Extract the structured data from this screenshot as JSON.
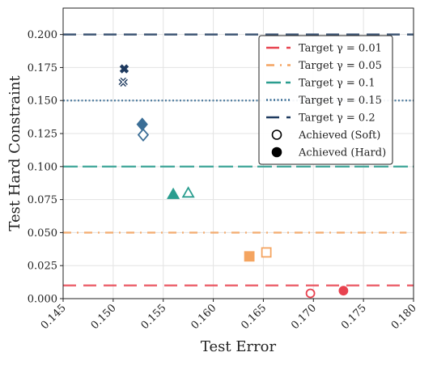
{
  "chart_data": {
    "type": "scatter",
    "title": "",
    "xlabel": "Test Error",
    "ylabel": "Test Hard Constraint",
    "xlim": [
      0.145,
      0.18
    ],
    "ylim": [
      0.0,
      0.22
    ],
    "xticks": [
      "0.145",
      "0.150",
      "0.155",
      "0.160",
      "0.165",
      "0.170",
      "0.175",
      "0.180"
    ],
    "yticks": [
      "0.000",
      "0.025",
      "0.050",
      "0.075",
      "0.100",
      "0.125",
      "0.150",
      "0.175",
      "0.200"
    ],
    "grid": true,
    "legend_position": "upper-right",
    "series": [
      {
        "name": "Target γ = 0.01",
        "target": 0.01,
        "color": "#e8424f",
        "line_style": "dashed",
        "marker": "circle",
        "soft": {
          "x": 0.1697,
          "y": 0.004
        },
        "hard": {
          "x": 0.173,
          "y": 0.006
        }
      },
      {
        "name": "Target γ = 0.05",
        "target": 0.05,
        "color": "#f4a460",
        "line_style": "dash-dot",
        "marker": "square",
        "soft": {
          "x": 0.1653,
          "y": 0.035
        },
        "hard": {
          "x": 0.1636,
          "y": 0.032
        }
      },
      {
        "name": "Target γ = 0.1",
        "target": 0.1,
        "color": "#2a9d8f",
        "line_style": "long-dashed",
        "marker": "triangle",
        "soft": {
          "x": 0.1575,
          "y": 0.08
        },
        "hard": {
          "x": 0.156,
          "y": 0.079
        }
      },
      {
        "name": "Target γ = 0.15",
        "target": 0.15,
        "color": "#3b6e96",
        "line_style": "dotted",
        "marker": "diamond",
        "soft": {
          "x": 0.153,
          "y": 0.124
        },
        "hard": {
          "x": 0.1529,
          "y": 0.132
        }
      },
      {
        "name": "Target γ = 0.2",
        "target": 0.2,
        "color": "#1e3a5f",
        "line_style": "dashed",
        "marker": "x",
        "soft": {
          "x": 0.151,
          "y": 0.164
        },
        "hard": {
          "x": 0.1511,
          "y": 0.174
        }
      }
    ],
    "legend_extra": [
      {
        "label": "Achieved (Soft)",
        "marker": "open-circle"
      },
      {
        "label": "Achieved (Hard)",
        "marker": "filled-circle"
      }
    ],
    "neutral_color": "#637087"
  }
}
